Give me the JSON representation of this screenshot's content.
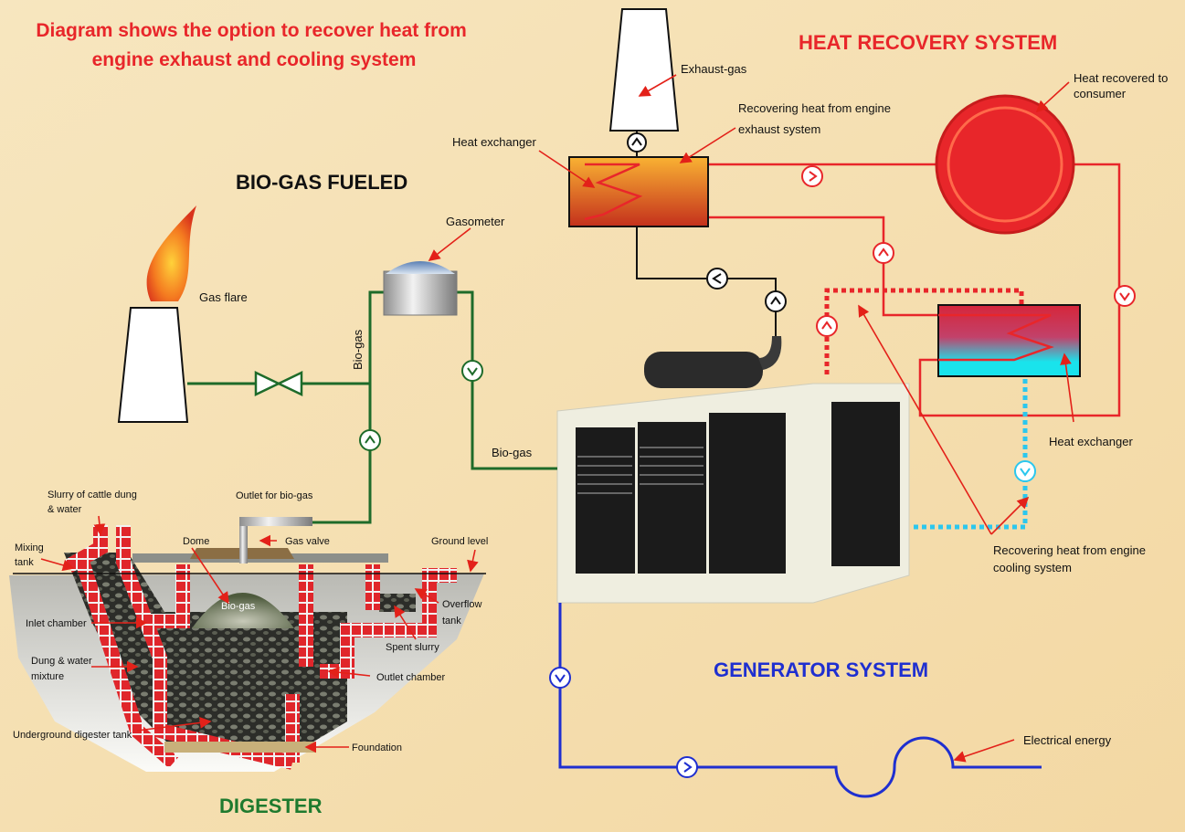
{
  "title": [
    "Diagram shows the option to recover heat from",
    "engine exhaust and cooling system"
  ],
  "sections": {
    "heat_recovery": "HEAT RECOVERY SYSTEM",
    "bio_gas_fueled": "BIO-GAS FUELED",
    "generator": "GENERATOR SYSTEM",
    "digester": "DIGESTER"
  },
  "heat_recovery_labels": {
    "exhaust_gas": "Exhaust-gas",
    "heat_to_consumer": [
      "Heat recovered to",
      "consumer"
    ],
    "recovering_exhaust": [
      "Recovering heat from engine",
      "exhaust system"
    ],
    "heat_exchanger_top": "Heat exchanger",
    "heat_exchanger_right": "Heat exchanger",
    "recovering_cooling": [
      "Recovering heat from engine",
      "cooling system"
    ],
    "electrical_energy": "Electrical energy"
  },
  "bio_gas_labels": {
    "gasometer": "Gasometer",
    "gas_flare": "Gas flare",
    "bio_gas_vertical": "Bio-gas",
    "bio_gas_horizontal": "Bio-gas"
  },
  "digester_labels": {
    "slurry": [
      "Slurry of cattle dung",
      "& water"
    ],
    "outlet_bio_gas": "Outlet for bio-gas",
    "mixing_tank": [
      "Mixing",
      "tank"
    ],
    "dome": "Dome",
    "gas_valve": "Gas valve",
    "ground_level": "Ground level",
    "bio_gas_dome": "Bio-gas",
    "overflow_tank": [
      "Overflow",
      "tank"
    ],
    "inlet_chamber": "Inlet chamber",
    "spent_slurry": "Spent slurry",
    "dung_water": [
      "Dung & water",
      "mixture"
    ],
    "outlet_chamber": "Outlet chamber",
    "underground_tank": "Underground digester tank",
    "foundation": "Foundation"
  }
}
